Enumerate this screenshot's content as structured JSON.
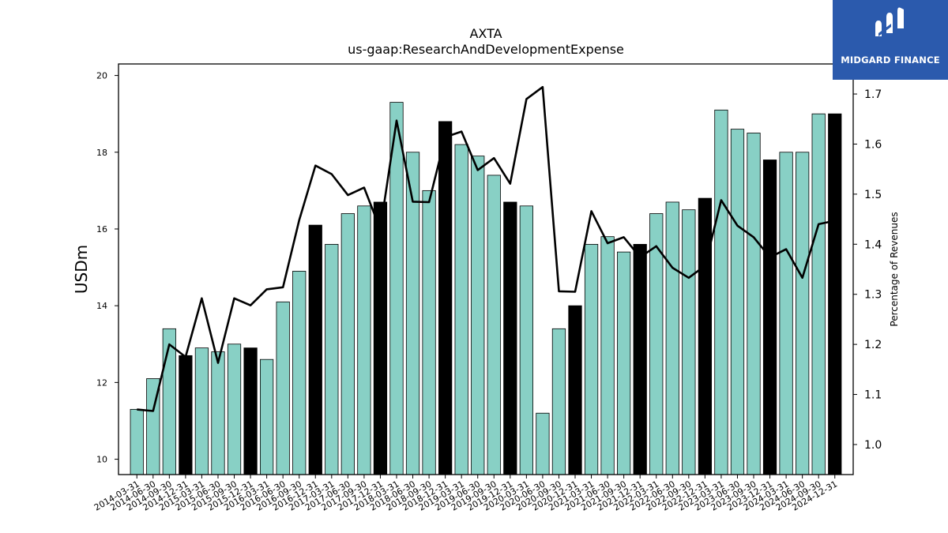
{
  "chart_data": {
    "type": "bar",
    "title": "AXTA",
    "subtitle": "us-gaap:ResearchAndDevelopmentExpense",
    "ylabel": "USDm",
    "y2label": "Percentage of Revenues",
    "ylim": [
      9.6,
      20.3
    ],
    "y2lim": [
      0.94,
      1.76
    ],
    "yticks": [
      10,
      12,
      14,
      16,
      18,
      20
    ],
    "y2ticks": [
      1.0,
      1.1,
      1.2,
      1.3,
      1.4,
      1.5,
      1.6,
      1.7
    ],
    "categories": [
      "2014-03-31",
      "2014-06-30",
      "2014-09-30",
      "2014-12-31",
      "2015-03-31",
      "2015-06-30",
      "2015-09-30",
      "2015-12-31",
      "2016-03-31",
      "2016-06-30",
      "2016-09-30",
      "2016-12-31",
      "2017-03-31",
      "2017-06-30",
      "2017-09-30",
      "2017-12-31",
      "2018-03-31",
      "2018-06-30",
      "2018-09-30",
      "2018-12-31",
      "2019-03-31",
      "2019-06-30",
      "2019-09-30",
      "2019-12-31",
      "2020-03-31",
      "2020-06-30",
      "2020-09-30",
      "2020-12-31",
      "2021-03-31",
      "2021-06-30",
      "2021-09-30",
      "2021-12-31",
      "2022-03-31",
      "2022-06-30",
      "2022-09-30",
      "2022-12-31",
      "2023-03-31",
      "2023-06-30",
      "2023-09-30",
      "2023-12-31",
      "2024-03-31",
      "2024-06-30",
      "2024-09-30",
      "2024-12-31"
    ],
    "series": [
      {
        "type": "bar",
        "axis": "left",
        "values": [
          11.3,
          12.1,
          13.4,
          12.7,
          12.9,
          12.8,
          13.0,
          12.9,
          12.6,
          14.1,
          14.9,
          16.1,
          15.6,
          16.4,
          16.6,
          16.7,
          19.3,
          18.0,
          17.0,
          18.8,
          18.2,
          17.9,
          17.4,
          16.7,
          16.6,
          11.2,
          13.4,
          14.0,
          15.6,
          15.8,
          15.4,
          15.6,
          16.4,
          16.7,
          16.5,
          16.8,
          19.1,
          18.6,
          18.5,
          17.8,
          18.0,
          18.0,
          19.0,
          19.0
        ],
        "highlight_every_4th_from": 3,
        "color": "#88d0c5",
        "highlight_color": "#000000",
        "edge_color": "#000000"
      },
      {
        "type": "line",
        "axis": "right",
        "values": [
          1.07,
          1.067,
          1.2,
          1.175,
          1.292,
          1.163,
          1.292,
          1.278,
          1.31,
          1.314,
          1.448,
          1.557,
          1.54,
          1.498,
          1.513,
          1.43,
          1.647,
          1.485,
          1.484,
          1.614,
          1.625,
          1.548,
          1.572,
          1.521,
          1.69,
          1.714,
          1.306,
          1.305,
          1.466,
          1.402,
          1.414,
          1.374,
          1.396,
          1.353,
          1.333,
          1.357,
          1.488,
          1.437,
          1.414,
          1.374,
          1.39,
          1.333,
          1.44,
          1.447
        ],
        "color": "#000000"
      }
    ]
  },
  "brand": {
    "name": "MIDGARD FINANCE",
    "bg_color": "#2b5aad",
    "icon": "midgard-logo-icon"
  }
}
